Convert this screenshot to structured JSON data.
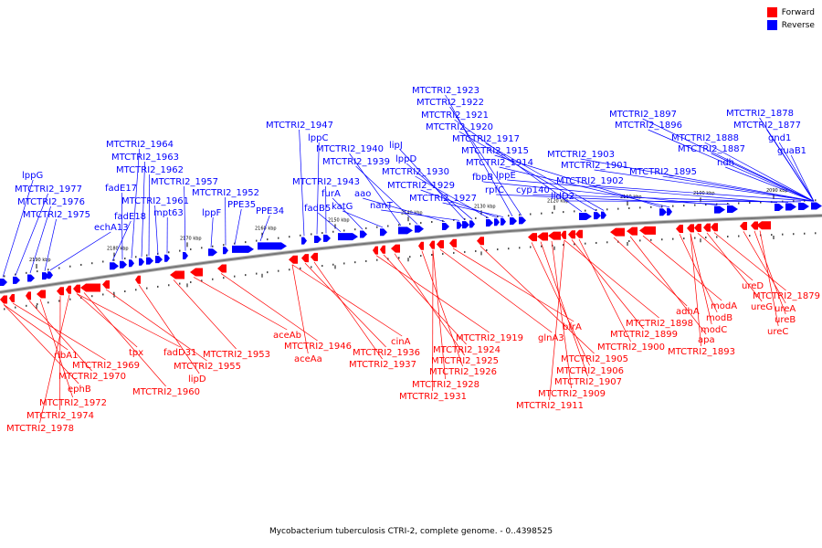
{
  "caption": "Mycobacterium tuberculosis CTRI-2, complete genome. - 0..4398525",
  "legend": [
    {
      "label": "Forward",
      "color": "#ff0000"
    },
    {
      "label": "Reverse",
      "color": "#0000ff"
    }
  ],
  "colors": {
    "forward": "#ff0000",
    "reverse": "#0000ff",
    "backbone": "#777777"
  },
  "scale": {
    "unit": "kbp",
    "ticks": [
      2190,
      2180,
      2170,
      2160,
      2150,
      2140,
      2130,
      2120,
      2110,
      2100,
      2090
    ]
  },
  "genes_reverse": [
    "lppG",
    "MTCTRI2_1977",
    "MTCTRI2_1976",
    "MTCTRI2_1975",
    "echA13",
    "fadE18",
    "fadE17",
    "MTCTRI2_1964",
    "MTCTRI2_1963",
    "MTCTRI2_1962",
    "MTCTRI2_1961",
    "mpt63",
    "MTCTRI2_1957",
    "lppF",
    "MTCTRI2_1952",
    "PPE35",
    "PPE34",
    "MTCTRI2_1947",
    "lppC",
    "MTCTRI2_1943",
    "fadB5",
    "furA",
    "katG",
    "MTCTRI2_1940",
    "MTCTRI2_1939",
    "aao",
    "nanT",
    "lipJ",
    "lppD",
    "MTCTRI2_1930",
    "MTCTRI2_1929",
    "MTCTRI2_1927",
    "MTCTRI2_1923",
    "MTCTRI2_1922",
    "MTCTRI2_1921",
    "MTCTRI2_1920",
    "MTCTRI2_1917",
    "MTCTRI2_1915",
    "MTCTRI2_1914",
    "fbpB",
    "rpfC",
    "lppE",
    "cyp140",
    "lldD2",
    "MTCTRI2_1903",
    "MTCTRI2_1901",
    "MTCTRI2_1902",
    "MTCTRI2_1897",
    "MTCTRI2_1896",
    "MTCTRI2_1895",
    "MTCTRI2_1888",
    "MTCTRI2_1887",
    "ndh",
    "MTCTRI2_1878",
    "MTCTRI2_1877",
    "gnd1",
    "guaB1"
  ],
  "genes_forward": [
    "ribA1",
    "ephB",
    "MTCTRI2_1969",
    "MTCTRI2_1970",
    "MTCTRI2_1972",
    "MTCTRI2_1974",
    "MTCTRI2_1978",
    "tpx",
    "fadD31",
    "MTCTRI2_1960",
    "MTCTRI2_1955",
    "lipD",
    "MTCTRI2_1953",
    "aceAb",
    "MTCTRI2_1946",
    "aceAa",
    "cinA",
    "MTCTRI2_1936",
    "MTCTRI2_1937",
    "MTCTRI2_1919",
    "MTCTRI2_1924",
    "MTCTRI2_1925",
    "MTCTRI2_1926",
    "MTCTRI2_1928",
    "MTCTRI2_1931",
    "glnA3",
    "bfrA",
    "MTCTRI2_1905",
    "MTCTRI2_1906",
    "MTCTRI2_1907",
    "MTCTRI2_1909",
    "MTCTRI2_1911",
    "MTCTRI2_1898",
    "MTCTRI2_1899",
    "MTCTRI2_1900",
    "adhA",
    "apa",
    "modA",
    "modB",
    "modC",
    "MTCTRI2_1893",
    "ureD",
    "ureG",
    "MTCTRI2_1879",
    "ureA",
    "ureB",
    "ureC"
  ]
}
